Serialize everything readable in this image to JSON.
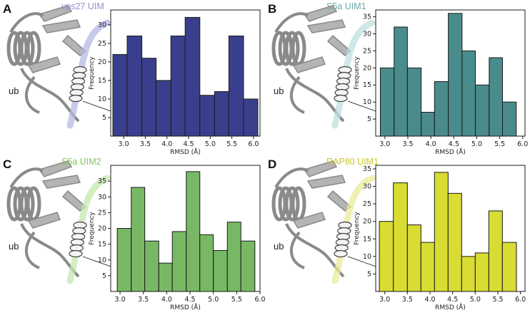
{
  "ub_label": "ub",
  "chart_data": [
    {
      "type": "bar",
      "panel": "A",
      "title": "vps27 UIM",
      "title_color": "#8f8fcf",
      "bar_color": "#3a3f8d",
      "uim_color": "#b7b7e6",
      "xlabel": "RMSD (Å)",
      "ylabel": "Frequency",
      "xlim": [
        2.7,
        6.15
      ],
      "ylim": [
        0,
        34
      ],
      "x_ticks": [
        3.0,
        3.5,
        4.0,
        4.5,
        5.0,
        5.5,
        6.0
      ],
      "x_tick_labels": [
        "3.0",
        "3.5",
        "4.0",
        "4.5",
        "5.0",
        "5.5",
        "6.0"
      ],
      "y_ticks": [
        5,
        10,
        15,
        20,
        25,
        30
      ],
      "bin_edges": [
        2.75,
        3.08,
        3.42,
        3.75,
        4.09,
        4.42,
        4.76,
        5.1,
        5.43,
        5.77,
        6.1
      ],
      "values": [
        22,
        27,
        21,
        15,
        27,
        32,
        11,
        12,
        27,
        10
      ]
    },
    {
      "type": "bar",
      "panel": "B",
      "title": "S5a UIM1",
      "title_color": "#6aa8a8",
      "bar_color": "#4a8b8c",
      "uim_color": "#bfe0e0",
      "xlabel": "RMSD (Å)",
      "ylabel": "Frequency",
      "xlim": [
        2.8,
        6.05
      ],
      "ylim": [
        0,
        37
      ],
      "x_ticks": [
        3.0,
        3.5,
        4.0,
        4.5,
        5.0,
        5.5,
        6.0
      ],
      "x_tick_labels": [
        "3.0",
        "3.5",
        "4.0",
        "4.5",
        "5.0",
        "5.5",
        "6.0"
      ],
      "y_ticks": [
        5,
        10,
        15,
        20,
        25,
        30,
        35
      ],
      "bin_edges": [
        2.9,
        3.2,
        3.49,
        3.79,
        4.08,
        4.38,
        4.68,
        4.97,
        5.27,
        5.56,
        5.86
      ],
      "values": [
        20,
        32,
        20,
        7,
        16,
        36,
        25,
        15,
        23,
        10
      ]
    },
    {
      "type": "bar",
      "panel": "C",
      "title": "S5a UIM2",
      "title_color": "#7fc65e",
      "bar_color": "#78b865",
      "uim_color": "#c4e8ae",
      "xlabel": "RMSD (Å)",
      "ylabel": "Frequency",
      "xlim": [
        2.8,
        6.0
      ],
      "ylim": [
        0,
        40
      ],
      "x_ticks": [
        3.0,
        3.5,
        4.0,
        4.5,
        5.0,
        5.5,
        6.0
      ],
      "x_tick_labels": [
        "3.0",
        "3.5",
        "4.0",
        "4.5",
        "5.0",
        "5.5",
        "6.0"
      ],
      "y_ticks": [
        5,
        10,
        15,
        20,
        25,
        30,
        35
      ],
      "bin_edges": [
        2.94,
        3.24,
        3.53,
        3.83,
        4.12,
        4.42,
        4.71,
        5.0,
        5.3,
        5.59,
        5.89
      ],
      "values": [
        20,
        33,
        16,
        9,
        19,
        38,
        18,
        13,
        22,
        16
      ]
    },
    {
      "type": "bar",
      "panel": "D",
      "title": "RAP80 UIM1",
      "title_color": "#c8c530",
      "bar_color": "#d9dc32",
      "uim_color": "#e8ec9a",
      "xlabel": "RMSD (Å)",
      "ylabel": "Frequency",
      "xlim": [
        2.8,
        6.1
      ],
      "ylim": [
        0,
        36
      ],
      "x_ticks": [
        3.0,
        3.5,
        4.0,
        4.5,
        5.0,
        5.5,
        6.0
      ],
      "x_tick_labels": [
        "3.0",
        "3.5",
        "4.0",
        "4.5",
        "5.0",
        "5.5",
        "6.0"
      ],
      "y_ticks": [
        5,
        10,
        15,
        20,
        25,
        30,
        35
      ],
      "bin_edges": [
        2.88,
        3.19,
        3.5,
        3.8,
        4.1,
        4.4,
        4.7,
        5.0,
        5.3,
        5.6,
        5.91
      ],
      "values": [
        20,
        31,
        19,
        14,
        34,
        28,
        10,
        11,
        23,
        14
      ]
    }
  ]
}
